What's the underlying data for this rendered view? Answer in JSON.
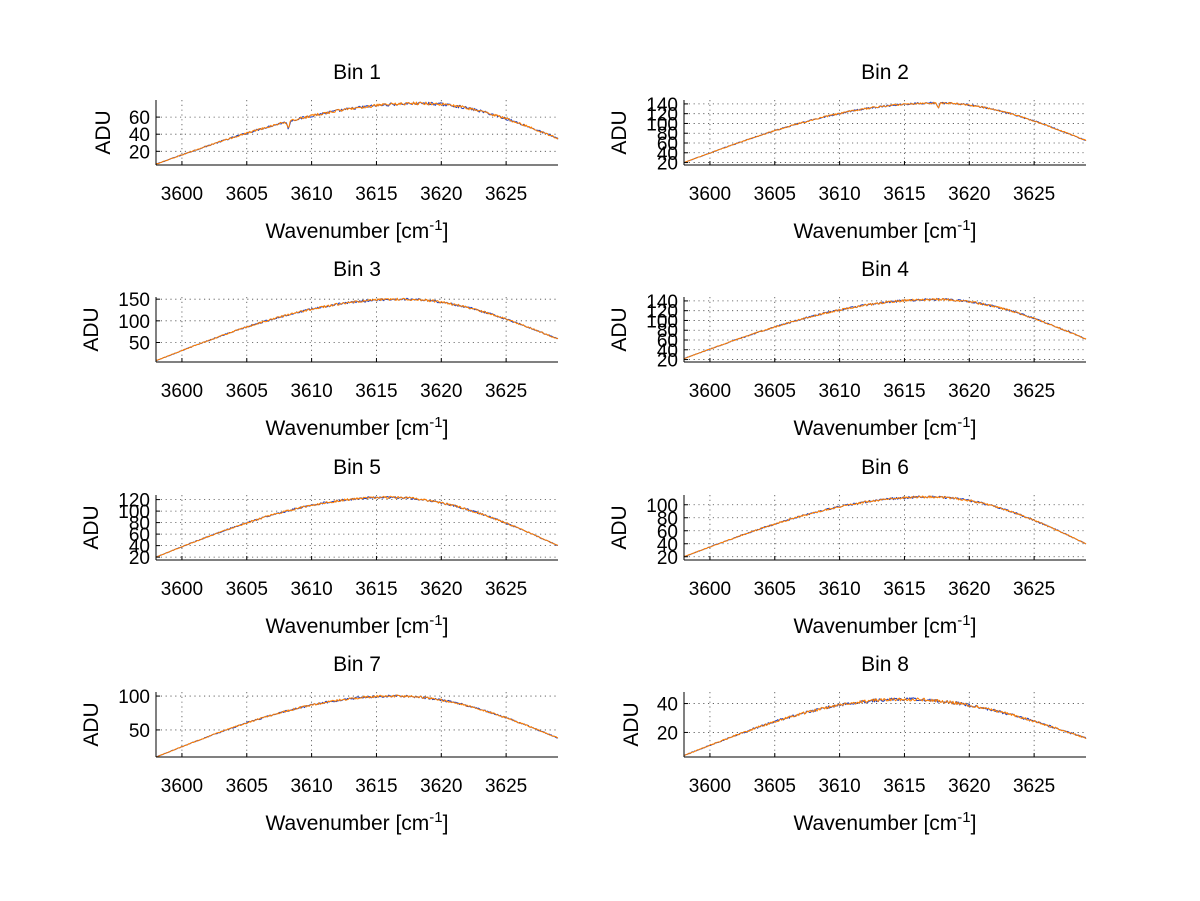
{
  "chart_data": [
    {
      "type": "line",
      "title": "Bin 1",
      "xlabel": "Wavenumber [cm",
      "xlabel_sup": "-1",
      "xlabel_close": "]",
      "ylabel": "ADU",
      "xlim": [
        3598,
        3629
      ],
      "ylim": [
        4,
        80
      ],
      "xticks": [
        3600,
        3605,
        3610,
        3615,
        3620,
        3625
      ],
      "yticks": [
        20,
        40,
        60
      ],
      "peak_x": 3618.5,
      "peak": 76,
      "left": 5,
      "right": 35,
      "dips": [
        [
          3608.2,
          8
        ]
      ],
      "noise": 1.4,
      "series": [
        {
          "name": "series 1",
          "color": "#1f3fbf"
        },
        {
          "name": "series 2",
          "color": "#ff7f00"
        }
      ]
    },
    {
      "type": "line",
      "title": "Bin 2",
      "xlabel": "Wavenumber [cm",
      "xlabel_sup": "-1",
      "xlabel_close": "]",
      "ylabel": "ADU",
      "xlim": [
        3598,
        3629
      ],
      "ylim": [
        15,
        148
      ],
      "xticks": [
        3600,
        3605,
        3610,
        3615,
        3620,
        3625
      ],
      "yticks": [
        20,
        40,
        60,
        80,
        100,
        120,
        140
      ],
      "peak_x": 3617.5,
      "peak": 142,
      "left": 20,
      "right": 65,
      "dips": [
        [
          3617.6,
          10
        ]
      ],
      "noise": 1.5,
      "series": [
        {
          "name": "series 1",
          "color": "#1f3fbf"
        },
        {
          "name": "series 2",
          "color": "#ff7f00"
        }
      ]
    },
    {
      "type": "line",
      "title": "Bin 3",
      "xlabel": "Wavenumber [cm",
      "xlabel_sup": "-1",
      "xlabel_close": "]",
      "ylabel": "ADU",
      "xlim": [
        3598,
        3629
      ],
      "ylim": [
        5,
        155
      ],
      "xticks": [
        3600,
        3605,
        3610,
        3615,
        3620,
        3625
      ],
      "yticks": [
        50,
        100,
        150
      ],
      "peak_x": 3617,
      "peak": 150,
      "left": 8,
      "right": 58,
      "dips": [],
      "noise": 2.2,
      "series": [
        {
          "name": "series 1",
          "color": "#1f3fbf"
        },
        {
          "name": "series 2",
          "color": "#ff7f00"
        }
      ]
    },
    {
      "type": "line",
      "title": "Bin 4",
      "xlabel": "Wavenumber [cm",
      "xlabel_sup": "-1",
      "xlabel_close": "]",
      "ylabel": "ADU",
      "xlim": [
        3598,
        3629
      ],
      "ylim": [
        15,
        148
      ],
      "xticks": [
        3600,
        3605,
        3610,
        3615,
        3620,
        3625
      ],
      "yticks": [
        20,
        40,
        60,
        80,
        100,
        120,
        140
      ],
      "peak_x": 3617.5,
      "peak": 143,
      "left": 22,
      "right": 62,
      "dips": [],
      "noise": 1.8,
      "series": [
        {
          "name": "series 1",
          "color": "#1f3fbf"
        },
        {
          "name": "series 2",
          "color": "#ff7f00"
        }
      ]
    },
    {
      "type": "line",
      "title": "Bin 5",
      "xlabel": "Wavenumber [cm",
      "xlabel_sup": "-1",
      "xlabel_close": "]",
      "ylabel": "ADU",
      "xlim": [
        3598,
        3629
      ],
      "ylim": [
        15,
        128
      ],
      "xticks": [
        3600,
        3605,
        3610,
        3615,
        3620,
        3625
      ],
      "yticks": [
        20,
        40,
        60,
        80,
        100,
        120
      ],
      "peak_x": 3616,
      "peak": 124,
      "left": 20,
      "right": 40,
      "dips": [],
      "noise": 1.6,
      "series": [
        {
          "name": "series 1",
          "color": "#1f3fbf"
        },
        {
          "name": "series 2",
          "color": "#ff7f00"
        }
      ]
    },
    {
      "type": "line",
      "title": "Bin 6",
      "xlabel": "Wavenumber [cm",
      "xlabel_sup": "-1",
      "xlabel_close": "]",
      "ylabel": "ADU",
      "xlim": [
        3598,
        3629
      ],
      "ylim": [
        15,
        115
      ],
      "xticks": [
        3600,
        3605,
        3610,
        3615,
        3620,
        3625
      ],
      "yticks": [
        20,
        40,
        60,
        80,
        100
      ],
      "peak_x": 3617,
      "peak": 112,
      "left": 20,
      "right": 40,
      "dips": [],
      "noise": 1.4,
      "series": [
        {
          "name": "series 1",
          "color": "#1f3fbf"
        },
        {
          "name": "series 2",
          "color": "#ff7f00"
        }
      ]
    },
    {
      "type": "line",
      "title": "Bin 7",
      "xlabel": "Wavenumber [cm",
      "xlabel_sup": "-1",
      "xlabel_close": "]",
      "ylabel": "ADU",
      "xlim": [
        3598,
        3629
      ],
      "ylim": [
        10,
        106
      ],
      "xticks": [
        3600,
        3605,
        3610,
        3615,
        3620,
        3625
      ],
      "yticks": [
        50,
        100
      ],
      "peak_x": 3616.5,
      "peak": 100,
      "left": 10,
      "right": 38,
      "dips": [],
      "noise": 1.3,
      "series": [
        {
          "name": "series 1",
          "color": "#1f3fbf"
        },
        {
          "name": "series 2",
          "color": "#ff7f00"
        }
      ]
    },
    {
      "type": "line",
      "title": "Bin 8",
      "xlabel": "Wavenumber [cm",
      "xlabel_sup": "-1",
      "xlabel_close": "]",
      "ylabel": "ADU",
      "xlim": [
        3598,
        3629
      ],
      "ylim": [
        3,
        48
      ],
      "xticks": [
        3600,
        3605,
        3610,
        3615,
        3620,
        3625
      ],
      "yticks": [
        20,
        40
      ],
      "peak_x": 3615,
      "peak": 43,
      "left": 4,
      "right": 16,
      "dips": [],
      "noise": 0.9,
      "series": [
        {
          "name": "series 1",
          "color": "#1f3fbf"
        },
        {
          "name": "series 2",
          "color": "#ff7f00"
        }
      ]
    }
  ]
}
